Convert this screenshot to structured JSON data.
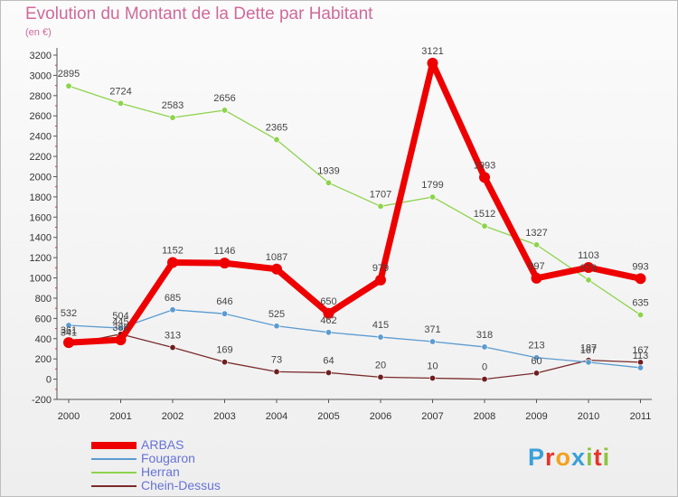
{
  "chart_data": {
    "type": "line",
    "title": "Evolution du Montant de la Dette par Habitant",
    "subtitle": "(en €)",
    "x": [
      "2000",
      "2001",
      "2002",
      "2003",
      "2004",
      "2005",
      "2006",
      "2007",
      "2008",
      "2009",
      "2010",
      "2011"
    ],
    "ylim": [
      -200,
      3200
    ],
    "yticks": [
      -200,
      0,
      200,
      400,
      600,
      800,
      1000,
      1200,
      1400,
      1600,
      1800,
      2000,
      2200,
      2400,
      2600,
      2800,
      3000,
      3200
    ],
    "grid": false,
    "legend_position": "bottom-left",
    "series": [
      {
        "name": "ARBAS",
        "color": "#ee0000",
        "values": [
          361,
          388,
          1152,
          1146,
          1087,
          650,
          979,
          3121,
          1993,
          997,
          1103,
          993
        ],
        "labels": [
          "361",
          "388",
          "1152",
          "1146",
          "1087",
          "650",
          "979",
          "3121",
          "1993",
          "997",
          "1103",
          "993"
        ]
      },
      {
        "name": "Fougaron",
        "color": "#5b9bd0",
        "values": [
          532,
          504,
          685,
          646,
          525,
          462,
          415,
          371,
          318,
          213,
          167,
          113
        ],
        "labels": [
          "532",
          "504",
          "685",
          "646",
          "525",
          "462",
          "415",
          "371",
          "318",
          "213",
          "167",
          "113"
        ]
      },
      {
        "name": "Herran",
        "color": "#8ed34c",
        "values": [
          2895,
          2724,
          2583,
          2656,
          2365,
          1939,
          1707,
          1799,
          1512,
          1327,
          979,
          635
        ],
        "labels": [
          "2895",
          "2724",
          "2583",
          "2656",
          "2365",
          "1939",
          "1707",
          "1799",
          "1512",
          "1327",
          "979",
          "635"
        ]
      },
      {
        "name": "Chein-Dessus",
        "color": "#7a2b2b",
        "values": [
          341,
          445,
          313,
          169,
          73,
          64,
          20,
          10,
          0,
          60,
          187,
          167
        ],
        "labels": [
          "341",
          "445",
          "313",
          "169",
          "73",
          "64",
          "20",
          "10",
          "0",
          "60",
          "187",
          "167"
        ]
      }
    ]
  },
  "logo": {
    "text": "Proxiti",
    "letters": [
      "P",
      "r",
      "o",
      "x",
      "i",
      "t",
      "i"
    ],
    "colors": [
      "#3aa0d8",
      "#e8342a",
      "#f4a11c",
      "#3aa0d8",
      "#8bc43f",
      "#e8342a",
      "#8bc43f"
    ]
  }
}
